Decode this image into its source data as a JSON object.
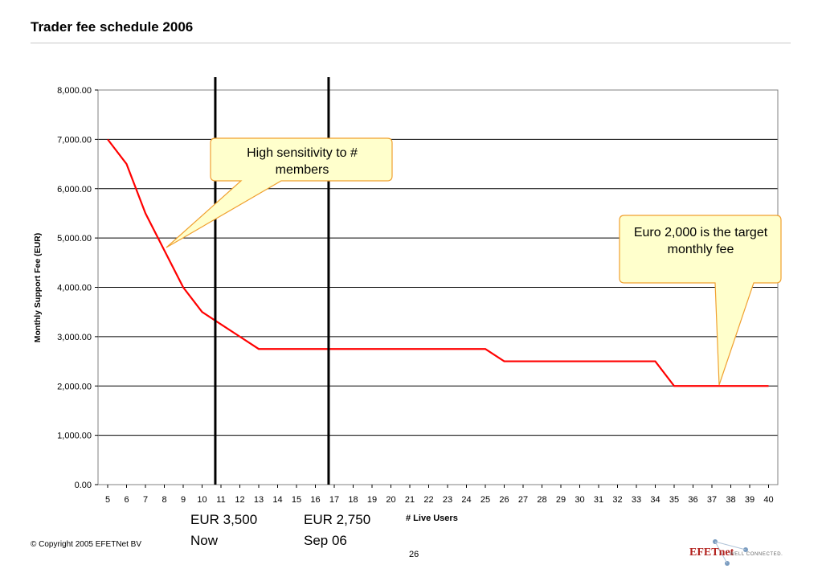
{
  "slide": {
    "title": "Trader fee schedule 2006",
    "copyright": "© Copyright 2005 EFETNet BV",
    "page_number": "26",
    "logo": {
      "text": "EFETnet",
      "tagline": "WELL CONNECTED."
    }
  },
  "chart_data": {
    "type": "line",
    "title": "",
    "xlabel": "# Live Users",
    "ylabel": "Monthly Support Fee (EUR)",
    "ylim": [
      0,
      8000
    ],
    "yticks": [
      "0.00",
      "1,000.00",
      "2,000.00",
      "3,000.00",
      "4,000.00",
      "5,000.00",
      "6,000.00",
      "7,000.00",
      "8,000.00"
    ],
    "grid": true,
    "line_color": "#ff0000",
    "categories": [
      "5",
      "6",
      "7",
      "8",
      "9",
      "10",
      "11",
      "12",
      "13",
      "14",
      "15",
      "16",
      "17",
      "18",
      "19",
      "20",
      "21",
      "22",
      "23",
      "24",
      "25",
      "26",
      "27",
      "28",
      "29",
      "30",
      "31",
      "32",
      "33",
      "34",
      "35",
      "36",
      "37",
      "38",
      "39",
      "40"
    ],
    "series": [
      {
        "values": [
          7000,
          6500,
          5500,
          4750,
          4000,
          3500,
          3250,
          3000,
          2750,
          2750,
          2750,
          2750,
          2750,
          2750,
          2750,
          2750,
          2750,
          2750,
          2750,
          2750,
          2750,
          2500,
          2500,
          2500,
          2500,
          2500,
          2500,
          2500,
          2500,
          2500,
          2000,
          2000,
          2000,
          2000,
          2000,
          2000
        ]
      }
    ],
    "markers": [
      {
        "at": "10",
        "line1": "EUR 3,500",
        "line2": "Now"
      },
      {
        "at": "16",
        "line1": "EUR 2,750",
        "line2": "Sep 06"
      }
    ],
    "callouts": [
      {
        "text": "High sensitivity to # members"
      },
      {
        "text": "Euro 2,000 is the target monthly fee"
      }
    ]
  }
}
